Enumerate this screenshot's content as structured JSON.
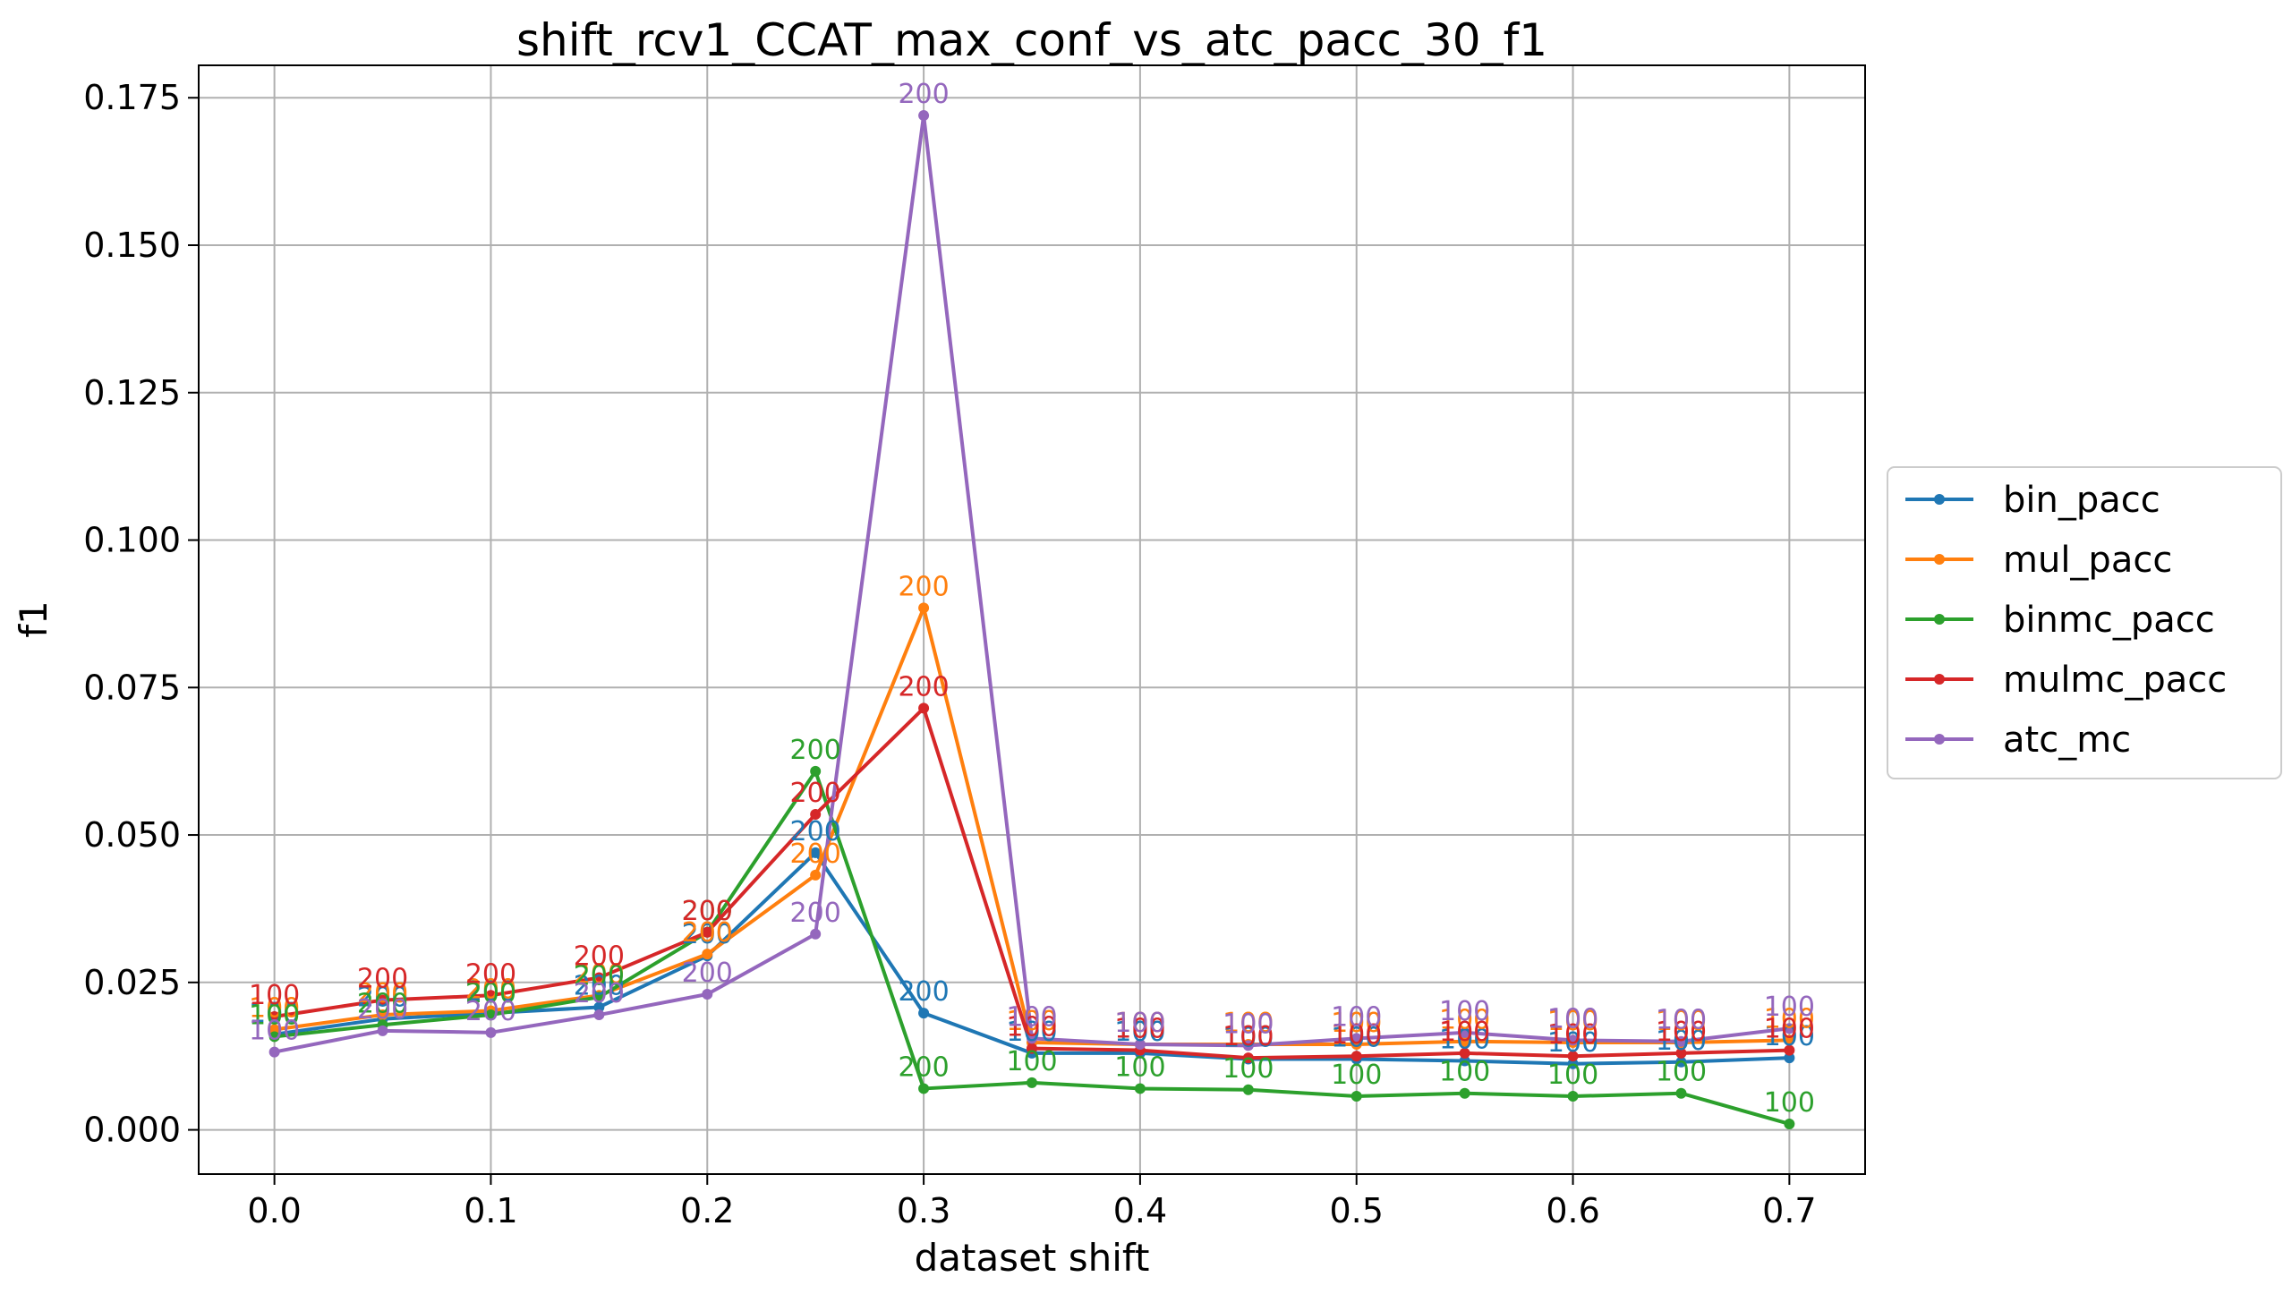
{
  "chart_data": {
    "type": "line",
    "title": "shift_rcv1_CCAT_max_conf_vs_atc_pacc_30_f1",
    "xlabel": "dataset shift",
    "ylabel": "f1",
    "xlim": [
      -0.035,
      0.735
    ],
    "ylim": [
      -0.0075,
      0.1805
    ],
    "xticks": [
      "0.0",
      "0.1",
      "0.2",
      "0.3",
      "0.4",
      "0.5",
      "0.6",
      "0.7"
    ],
    "xtick_values": [
      0.0,
      0.1,
      0.2,
      0.3,
      0.4,
      0.5,
      0.6,
      0.7
    ],
    "yticks": [
      "0.000",
      "0.025",
      "0.050",
      "0.075",
      "0.100",
      "0.125",
      "0.150",
      "0.175"
    ],
    "ytick_values": [
      0.0,
      0.025,
      0.05,
      0.075,
      0.1,
      0.125,
      0.15,
      0.175
    ],
    "grid": true,
    "legend_position": "right",
    "x": [
      0.0,
      0.05,
      0.1,
      0.15,
      0.2,
      0.25,
      0.3,
      0.35,
      0.4,
      0.45,
      0.5,
      0.55,
      0.6,
      0.65,
      0.7
    ],
    "series": [
      {
        "name": "bin_pacc",
        "color": "#1f77b4",
        "values": [
          0.0162,
          0.0188,
          0.0198,
          0.0208,
          0.0295,
          0.047,
          0.0198,
          0.013,
          0.013,
          0.012,
          0.012,
          0.0117,
          0.0112,
          0.0115,
          0.0122
        ],
        "labels": [
          "100",
          "200",
          "200",
          "200",
          "200",
          "200",
          "200",
          "100",
          "100",
          "100",
          "100",
          "100",
          "100",
          "100",
          "100"
        ]
      },
      {
        "name": "mul_pacc",
        "color": "#ff7f0e",
        "values": [
          0.017,
          0.0195,
          0.0202,
          0.0228,
          0.0298,
          0.0432,
          0.0885,
          0.0148,
          0.0145,
          0.0145,
          0.0145,
          0.015,
          0.0148,
          0.0148,
          0.0152
        ],
        "labels": [
          "100",
          "200",
          "200",
          "200",
          "200",
          "200",
          "200",
          "100",
          "100",
          "100",
          "100",
          "100",
          "100",
          "100",
          "100"
        ]
      },
      {
        "name": "binmc_pacc",
        "color": "#2ca02c",
        "values": [
          0.0158,
          0.0178,
          0.0195,
          0.0225,
          0.0335,
          0.0608,
          0.007,
          0.008,
          0.007,
          0.0068,
          0.0057,
          0.0062,
          0.0057,
          0.0062,
          0.001
        ],
        "labels": [
          "100",
          "200",
          "200",
          "200",
          "200",
          "200",
          "200",
          "100",
          "100",
          "100",
          "100",
          "100",
          "100",
          "100",
          "100"
        ]
      },
      {
        "name": "mulmc_pacc",
        "color": "#d62728",
        "values": [
          0.0192,
          0.022,
          0.0228,
          0.0258,
          0.0335,
          0.0535,
          0.0715,
          0.0138,
          0.0135,
          0.0122,
          0.0125,
          0.013,
          0.0125,
          0.013,
          0.0135
        ],
        "labels": [
          "100",
          "200",
          "200",
          "200",
          "200",
          "200",
          "200",
          "100",
          "100",
          "100",
          "100",
          "100",
          "100",
          "100",
          "100"
        ]
      },
      {
        "name": "atc_mc",
        "color": "#9467bd",
        "values": [
          0.0132,
          0.0168,
          0.0165,
          0.0195,
          0.023,
          0.0332,
          0.172,
          0.0155,
          0.0145,
          0.0143,
          0.0155,
          0.0165,
          0.0152,
          0.015,
          0.0172
        ],
        "labels": [
          "100",
          "200",
          "200",
          "200",
          "200",
          "200",
          "200",
          "100",
          "100",
          "100",
          "100",
          "100",
          "100",
          "100",
          "100"
        ]
      }
    ]
  }
}
